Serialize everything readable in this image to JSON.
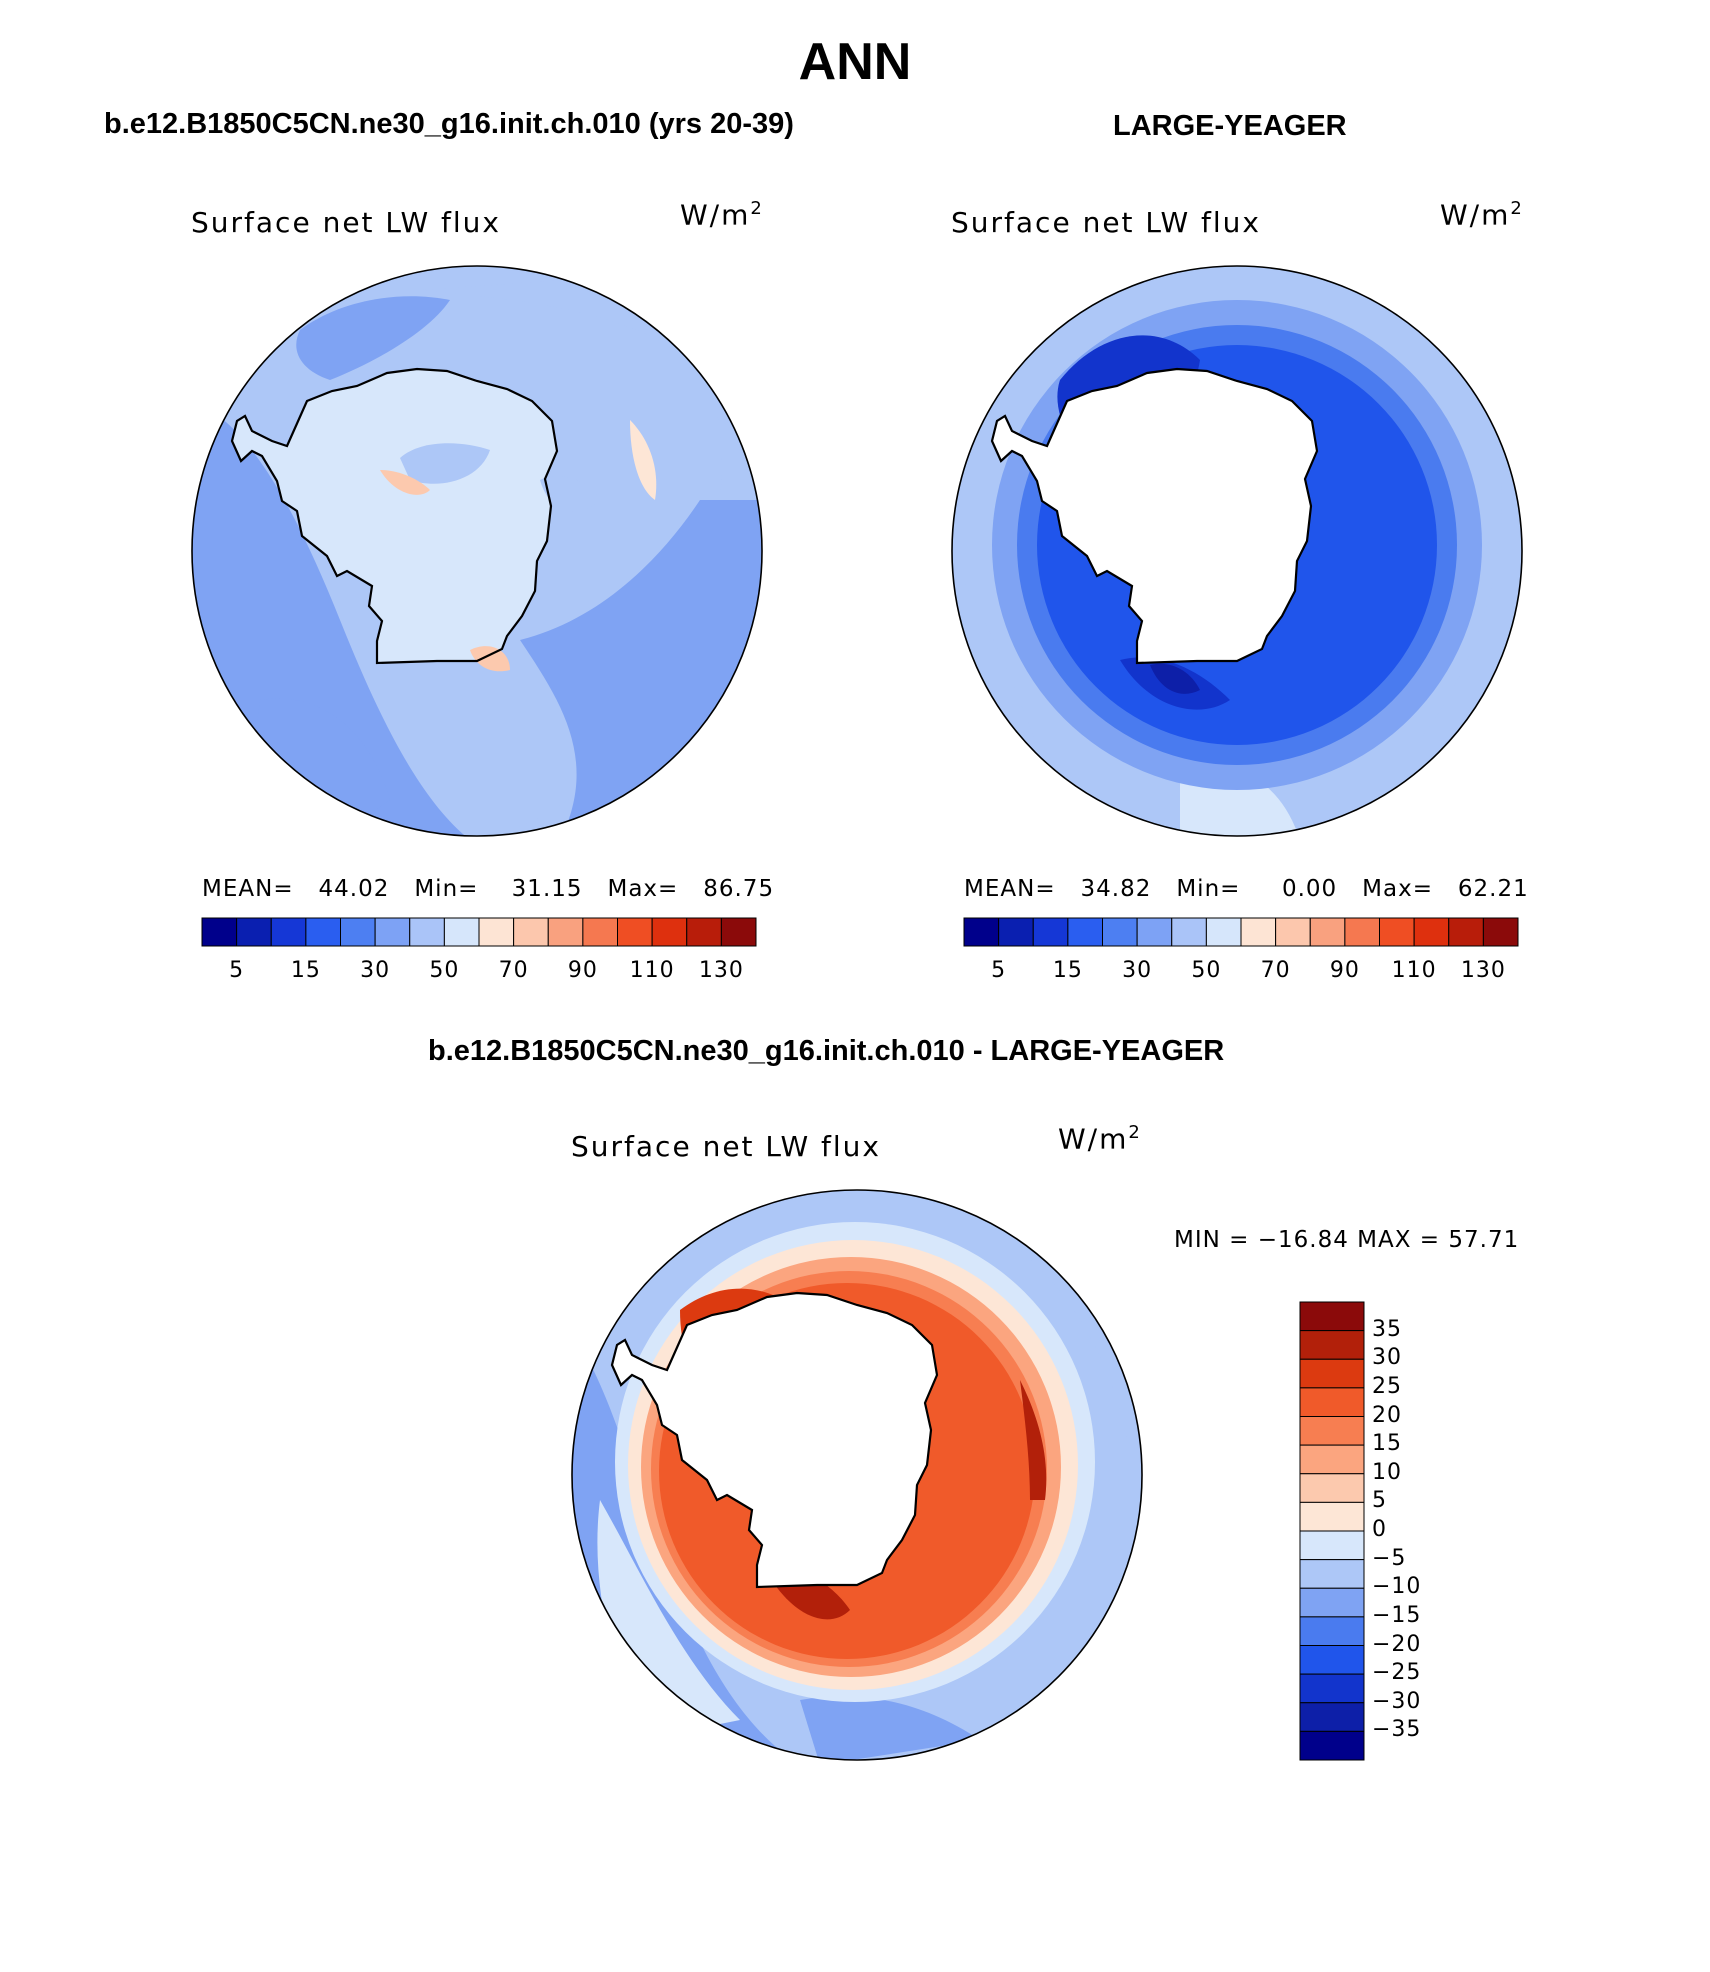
{
  "figure": {
    "title": "ANN",
    "case_title": "b.e12.B1850C5CN.ne30_g16.init.ch.010 (yrs 20-39)",
    "obs_title": "LARGE-YEAGER",
    "diff_title": "b.e12.B1850C5CN.ne30_g16.init.ch.010 - LARGE-YEAGER"
  },
  "panels": [
    {
      "variable": "Surface net LW flux",
      "units_base": "W/m",
      "units_exp": "2",
      "stats": {
        "mean_label": "MEAN=",
        "mean": "44.02",
        "min_label": "Min=",
        "min": "31.15",
        "max_label": "Max=",
        "max": "86.75"
      }
    },
    {
      "variable": "Surface net LW flux",
      "units_base": "W/m",
      "units_exp": "2",
      "stats": {
        "mean_label": "MEAN=",
        "mean": "34.82",
        "min_label": "Min=",
        "min": "0.00",
        "max_label": "Max=",
        "max": "62.21"
      }
    },
    {
      "variable": "Surface net LW flux",
      "units_base": "W/m",
      "units_exp": "2",
      "minmax_text": "MIN = −16.84 MAX =   57.71"
    }
  ],
  "colorbar_abs": {
    "colors": [
      "#00008b",
      "#0a1fb0",
      "#1537d6",
      "#2a5ef0",
      "#4d7ff2",
      "#7da2f5",
      "#aac4f8",
      "#d6e6fb",
      "#fde4d4",
      "#fcc7ad",
      "#f9a17f",
      "#f57850",
      "#ef4e23",
      "#de300e",
      "#b81d0a",
      "#8b0a0a"
    ],
    "labels": [
      "5",
      "15",
      "30",
      "50",
      "70",
      "90",
      "110",
      "130"
    ]
  },
  "colorbar_diff": {
    "colors": [
      "#00008b",
      "#0d1fa8",
      "#1234cc",
      "#2055eb",
      "#4a7bef",
      "#7fa3f3",
      "#adc7f7",
      "#d7e7fb",
      "#fde6d6",
      "#fcc9ae",
      "#fba57f",
      "#f77e51",
      "#f05a2a",
      "#dc3a10",
      "#b2200a",
      "#8b0a0a"
    ],
    "labels": [
      "35",
      "30",
      "25",
      "20",
      "15",
      "10",
      "5",
      "0",
      "−5",
      "−10",
      "−15",
      "−20",
      "−25",
      "−30",
      "−35"
    ]
  }
}
